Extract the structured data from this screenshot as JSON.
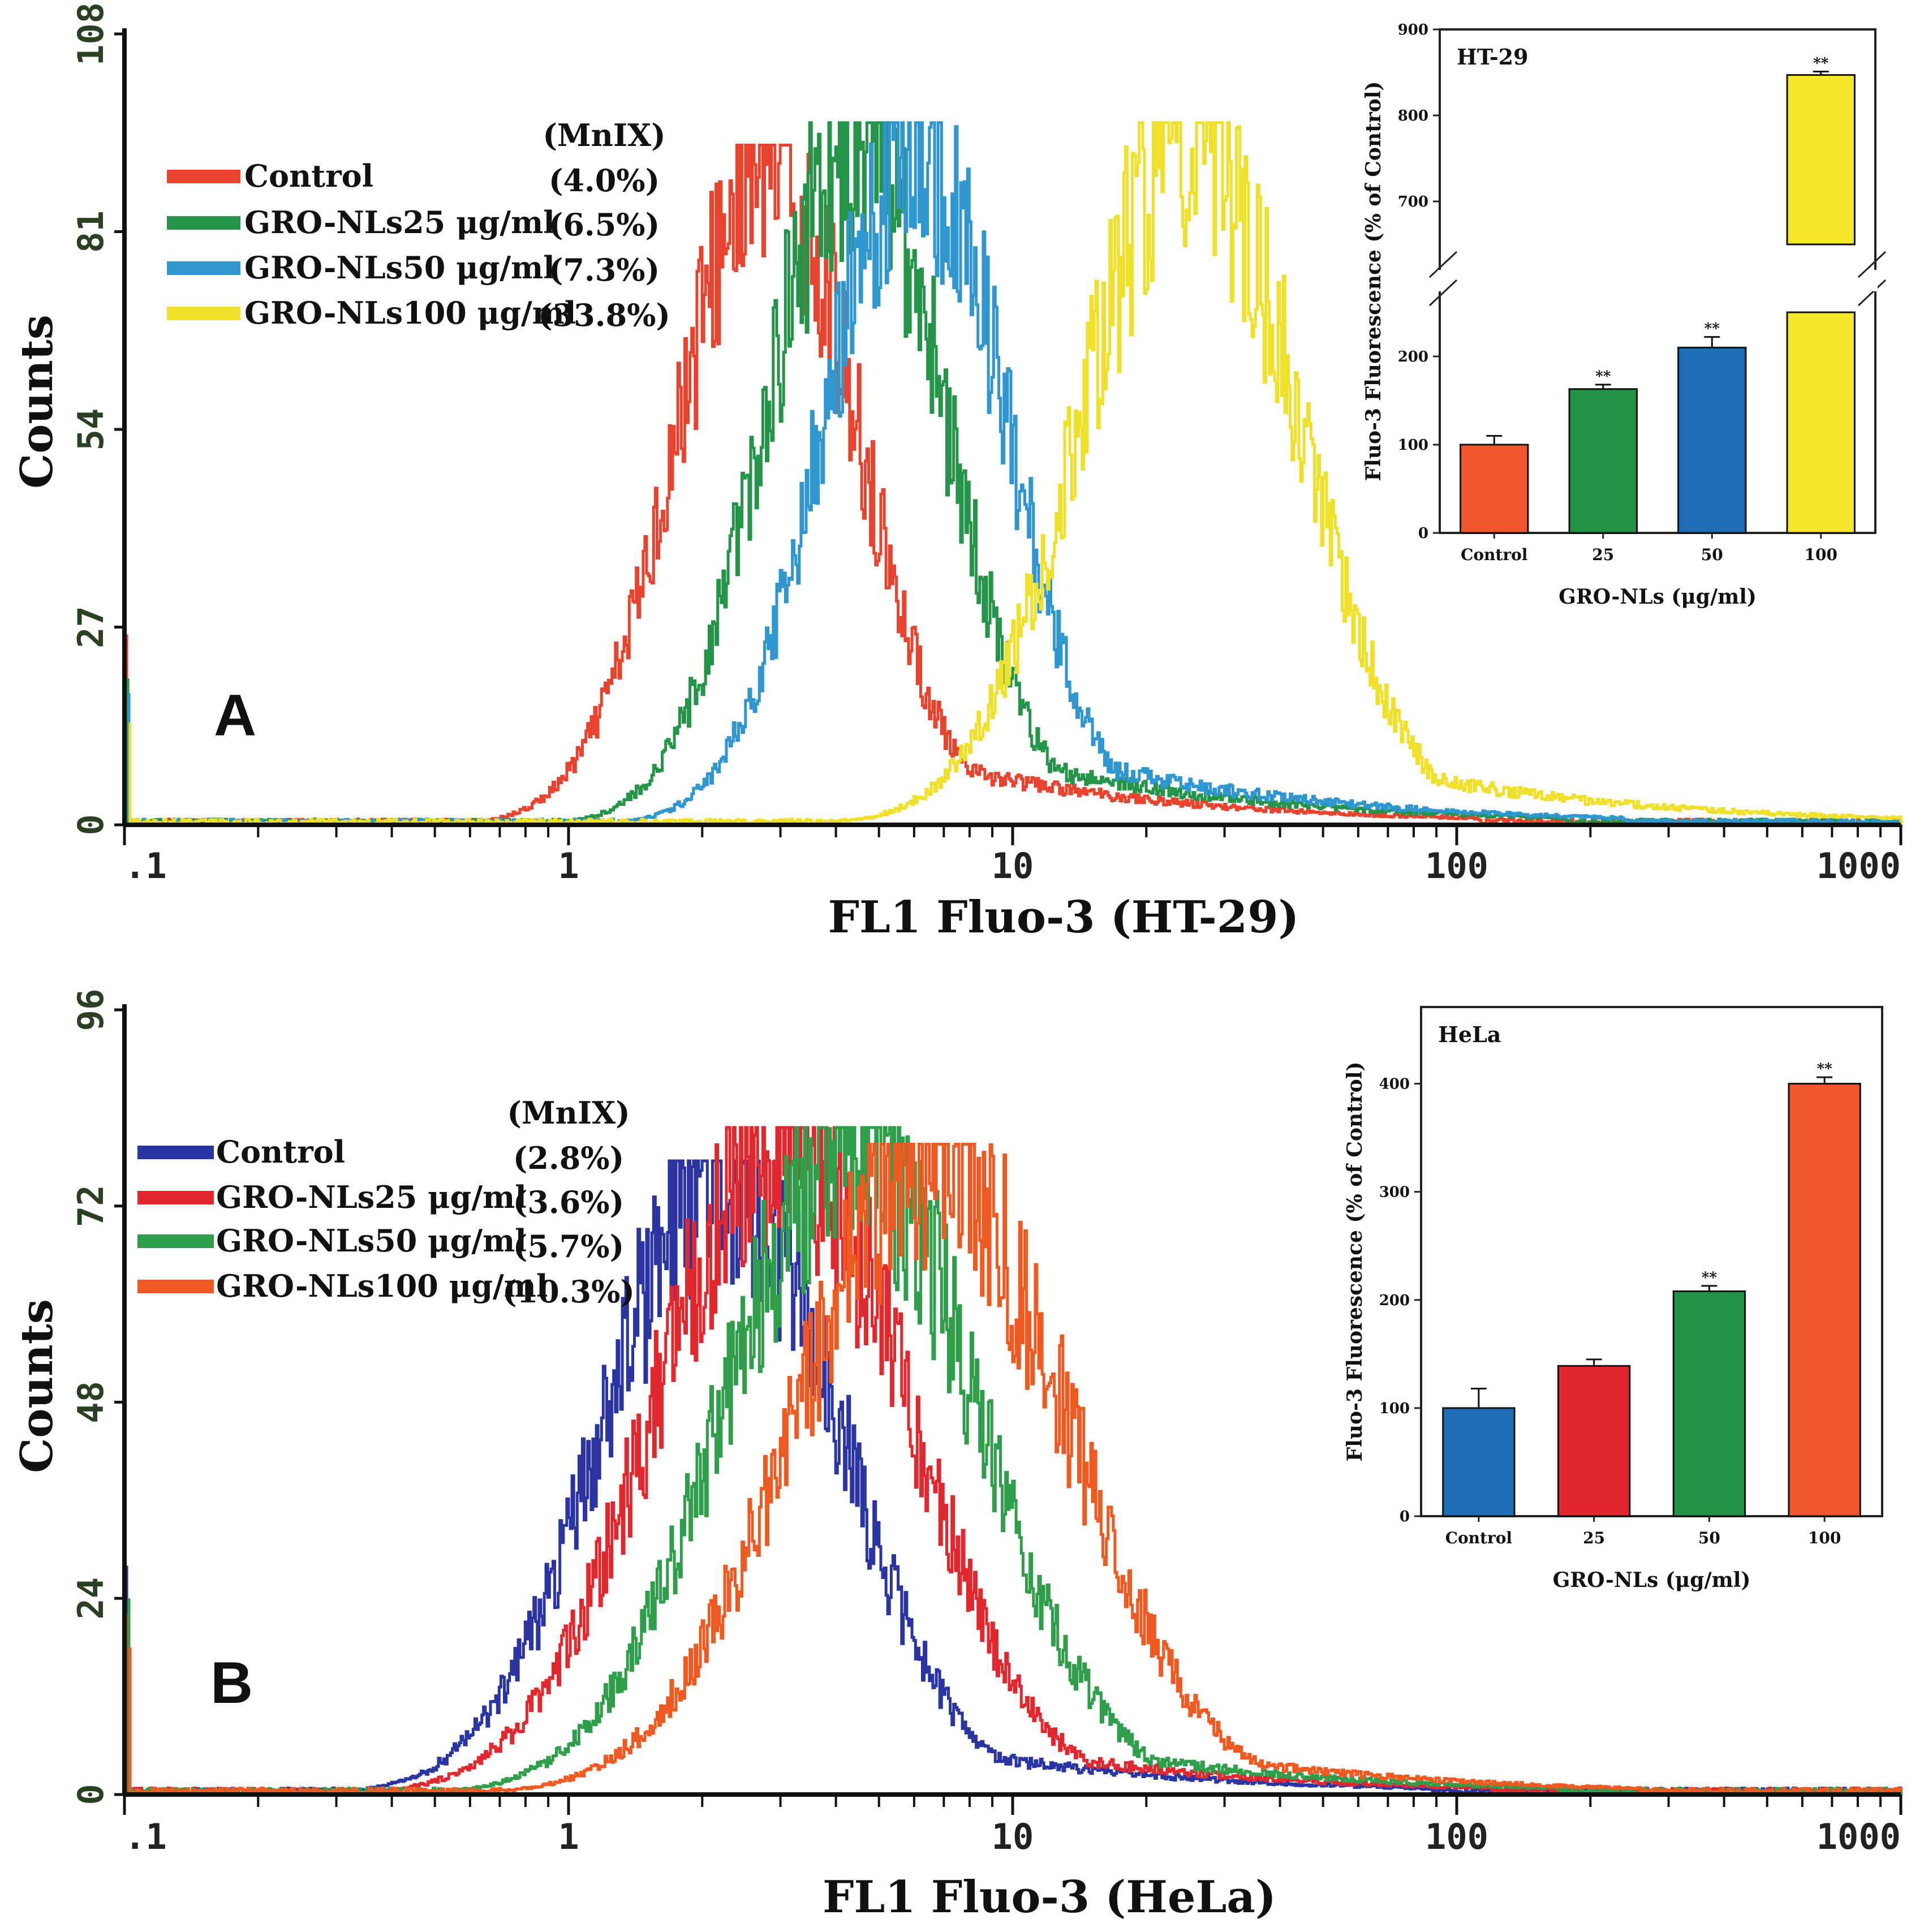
{
  "chart_data": [
    {
      "panel": "A",
      "type": "histogram",
      "xlabel": "FL1 Fluo-3 (HT-29)",
      "ylabel": "Counts",
      "x_scale": "log",
      "xlim": [
        0.1,
        1000
      ],
      "ylim": [
        0,
        108
      ],
      "x_ticks": [
        ".1",
        "1",
        "10",
        "100",
        "1000"
      ],
      "y_ticks": [
        "0",
        "27",
        "54",
        "81",
        "108"
      ],
      "legend_header": "(MnIX)",
      "series": [
        {
          "name": "Control",
          "label": "Control",
          "pct": "(4.0%)",
          "color": "#e8432e",
          "peak_x": 2.8,
          "peak_y": 91,
          "width": 0.2,
          "tail": 0.0
        },
        {
          "name": "GRO-NLs25",
          "label": "GRO-NLs25 μg/ml",
          "pct": "(6.5%)",
          "color": "#249449",
          "peak_x": 4.4,
          "peak_y": 94,
          "width": 0.2,
          "tail": 0.0
        },
        {
          "name": "GRO-NLs50",
          "label": "GRO-NLs50 μg/ml",
          "pct": "(7.3%)",
          "color": "#2f96cf",
          "peak_x": 6.0,
          "peak_y": 94,
          "width": 0.2,
          "tail": 0.0
        },
        {
          "name": "GRO-NLs100",
          "label": "GRO-NLs100 μg/ml",
          "pct": "(33.8%)",
          "color": "#efe02b",
          "peak_x": 25,
          "peak_y": 94,
          "width": 0.24,
          "tail": 0.0
        }
      ],
      "inset": {
        "type": "bar",
        "title": "HT-29",
        "xlabel": "GRO-NLs (μg/ml)",
        "ylabel": "Fluo-3 Fluorescence (% of Control)",
        "categories": [
          "Control",
          "25",
          "50",
          "100"
        ],
        "values": [
          100,
          163,
          210,
          847
        ],
        "errors": [
          10,
          5,
          12,
          4
        ],
        "significance": [
          "",
          "**",
          "**",
          "**"
        ],
        "colors": [
          "#f0552b",
          "#229247",
          "#1d6eb5",
          "#f5e82a"
        ],
        "y_ticks": [
          "0",
          "100",
          "200",
          "700",
          "800",
          "900"
        ],
        "axis_break": [
          250,
          650
        ]
      }
    },
    {
      "panel": "B",
      "type": "histogram",
      "xlabel": "FL1 Fluo-3 (HeLa)",
      "ylabel": "Counts",
      "x_scale": "log",
      "xlim": [
        0.1,
        1000
      ],
      "ylim": [
        0,
        96
      ],
      "x_ticks": [
        ".1",
        "1",
        "10",
        "100",
        "1000"
      ],
      "y_ticks": [
        "0",
        "24",
        "48",
        "72",
        "96"
      ],
      "legend_header": "(MnIX)",
      "series": [
        {
          "name": "Control",
          "label": "Control",
          "pct": "(2.8%)",
          "color": "#2a35a3",
          "peak_x": 2.2,
          "peak_y": 76,
          "width": 0.26,
          "tail": 0.0
        },
        {
          "name": "GRO-NLs25",
          "label": "GRO-NLs25 μg/ml",
          "pct": "(3.6%)",
          "color": "#e2282f",
          "peak_x": 3.0,
          "peak_y": 80,
          "width": 0.28,
          "tail": 0.0
        },
        {
          "name": "GRO-NLs50",
          "label": "GRO-NLs50 μg/ml",
          "pct": "(5.7%)",
          "color": "#2f9e4a",
          "peak_x": 4.3,
          "peak_y": 80,
          "width": 0.28,
          "tail": 0.0
        },
        {
          "name": "GRO-NLs100",
          "label": "GRO-NLs100 μg/ml",
          "pct": "(10.3%)",
          "color": "#ef5a22",
          "peak_x": 6.5,
          "peak_y": 78,
          "width": 0.3,
          "tail": 0.0
        }
      ],
      "inset": {
        "type": "bar",
        "title": "HeLa",
        "xlabel": "GRO-NLs (μg/ml)",
        "ylabel": "Fluo-3 Fluorescence (% of Control)",
        "categories": [
          "Control",
          "25",
          "50",
          "100"
        ],
        "values": [
          100,
          139,
          208,
          400
        ],
        "errors": [
          18,
          6,
          5,
          6
        ],
        "significance": [
          "",
          "",
          "**",
          "**"
        ],
        "colors": [
          "#1d6eb5",
          "#e2282f",
          "#229247",
          "#f0552b"
        ],
        "y_ticks": [
          "0",
          "100",
          "200",
          "300",
          "400"
        ],
        "ylim": [
          0,
          450
        ]
      }
    }
  ]
}
